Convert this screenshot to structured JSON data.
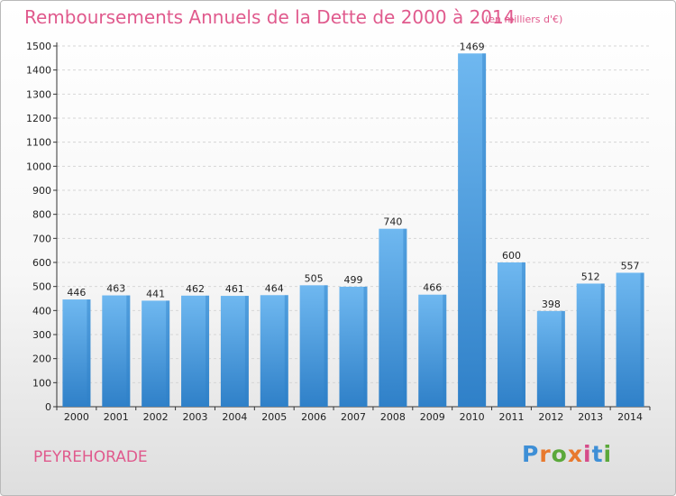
{
  "header": {
    "title": "Remboursements Annuels de la Dette de 2000 à 2014",
    "subtitle": "(en milliers d'€)"
  },
  "footer": {
    "place": "PEYREHORADE",
    "logo": {
      "letters": [
        "P",
        "r",
        "o",
        "x",
        "i",
        "t",
        "i"
      ],
      "colors": [
        "#3e8fd6",
        "#e8792e",
        "#5aa83a",
        "#e8792e",
        "#d64b8a",
        "#3e8fd6",
        "#5aa83a"
      ]
    }
  },
  "chart_data": {
    "type": "bar",
    "title": "Remboursements Annuels de la Dette de 2000 à 2014",
    "subtitle": "(en milliers d'€)",
    "categories": [
      "2000",
      "2001",
      "2002",
      "2003",
      "2004",
      "2005",
      "2006",
      "2007",
      "2008",
      "2009",
      "2010",
      "2011",
      "2012",
      "2013",
      "2014"
    ],
    "values": [
      446,
      463,
      441,
      462,
      461,
      464,
      505,
      499,
      740,
      466,
      1469,
      600,
      398,
      512,
      557
    ],
    "ylim": [
      0,
      1500
    ],
    "yticks": [
      0,
      100,
      200,
      300,
      400,
      500,
      600,
      700,
      800,
      900,
      1000,
      1100,
      1200,
      1300,
      1400,
      1500
    ],
    "grid": true,
    "bar_color": "#4a9ee0",
    "bar_color_light": "#6fb8f0",
    "bar_color_dark": "#2f80c8"
  }
}
